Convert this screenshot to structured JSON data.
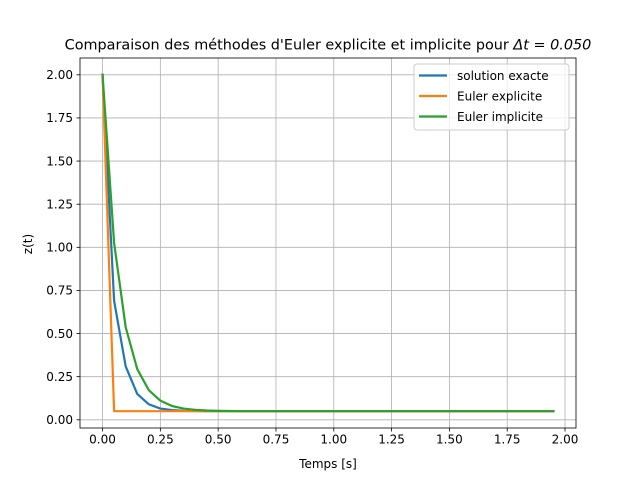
{
  "chart_data": {
    "type": "line",
    "title_text": "Comparaison des méthodes d'Euler explicite et implicite pour ",
    "title_math": "Δt = 0.050",
    "xlabel": "Temps [s]",
    "ylabel": "z(t)",
    "xlim": [
      -0.0975,
      2.0475
    ],
    "ylim": [
      -0.0475,
      2.0975
    ],
    "xticks": [
      0.0,
      0.25,
      0.5,
      0.75,
      1.0,
      1.25,
      1.5,
      1.75,
      2.0
    ],
    "xtick_labels": [
      "0.00",
      "0.25",
      "0.50",
      "0.75",
      "1.00",
      "1.25",
      "1.50",
      "1.75",
      "2.00"
    ],
    "yticks": [
      0.0,
      0.25,
      0.5,
      0.75,
      1.0,
      1.25,
      1.5,
      1.75,
      2.0
    ],
    "ytick_labels": [
      "0.00",
      "0.25",
      "0.50",
      "0.75",
      "1.00",
      "1.25",
      "1.50",
      "1.75",
      "2.00"
    ],
    "grid": true,
    "legend_position": "top-right",
    "x": [
      0.0,
      0.05,
      0.1,
      0.15,
      0.2,
      0.25,
      0.3,
      0.35,
      0.4,
      0.45,
      0.5,
      0.55,
      0.6,
      0.65,
      0.7,
      0.75,
      0.8,
      0.85,
      0.9,
      0.95,
      1.0,
      1.05,
      1.1,
      1.15,
      1.2,
      1.25,
      1.3,
      1.35,
      1.4,
      1.45,
      1.5,
      1.55,
      1.6,
      1.65,
      1.7,
      1.75,
      1.8,
      1.85,
      1.9,
      1.95
    ],
    "series": [
      {
        "name": "solution exacte",
        "color": "#1f77b4",
        "values": [
          2.0,
          0.69,
          0.31,
          0.15,
          0.09,
          0.065,
          0.056,
          0.052,
          0.051,
          0.05,
          0.05,
          0.05,
          0.05,
          0.05,
          0.05,
          0.05,
          0.05,
          0.05,
          0.05,
          0.05,
          0.05,
          0.05,
          0.05,
          0.05,
          0.05,
          0.05,
          0.05,
          0.05,
          0.05,
          0.05,
          0.05,
          0.05,
          0.05,
          0.05,
          0.05,
          0.05,
          0.05,
          0.05,
          0.05,
          0.05
        ]
      },
      {
        "name": "Euler explicite",
        "color": "#ff7f0e",
        "values": [
          2.0,
          0.05,
          0.05,
          0.05,
          0.05,
          0.05,
          0.05,
          0.05,
          0.05,
          0.05,
          0.05,
          0.05,
          0.05,
          0.05,
          0.05,
          0.05,
          0.05,
          0.05,
          0.05,
          0.05,
          0.05,
          0.05,
          0.05,
          0.05,
          0.05,
          0.05,
          0.05,
          0.05,
          0.05,
          0.05,
          0.05,
          0.05,
          0.05,
          0.05,
          0.05,
          0.05,
          0.05,
          0.05,
          0.05,
          0.05
        ]
      },
      {
        "name": "Euler implicite",
        "color": "#2ca02c",
        "values": [
          2.0,
          1.025,
          0.537,
          0.294,
          0.172,
          0.111,
          0.08,
          0.065,
          0.058,
          0.054,
          0.052,
          0.051,
          0.05,
          0.05,
          0.05,
          0.05,
          0.05,
          0.05,
          0.05,
          0.05,
          0.05,
          0.05,
          0.05,
          0.05,
          0.05,
          0.05,
          0.05,
          0.05,
          0.05,
          0.05,
          0.05,
          0.05,
          0.05,
          0.05,
          0.05,
          0.05,
          0.05,
          0.05,
          0.05,
          0.05
        ]
      }
    ]
  }
}
